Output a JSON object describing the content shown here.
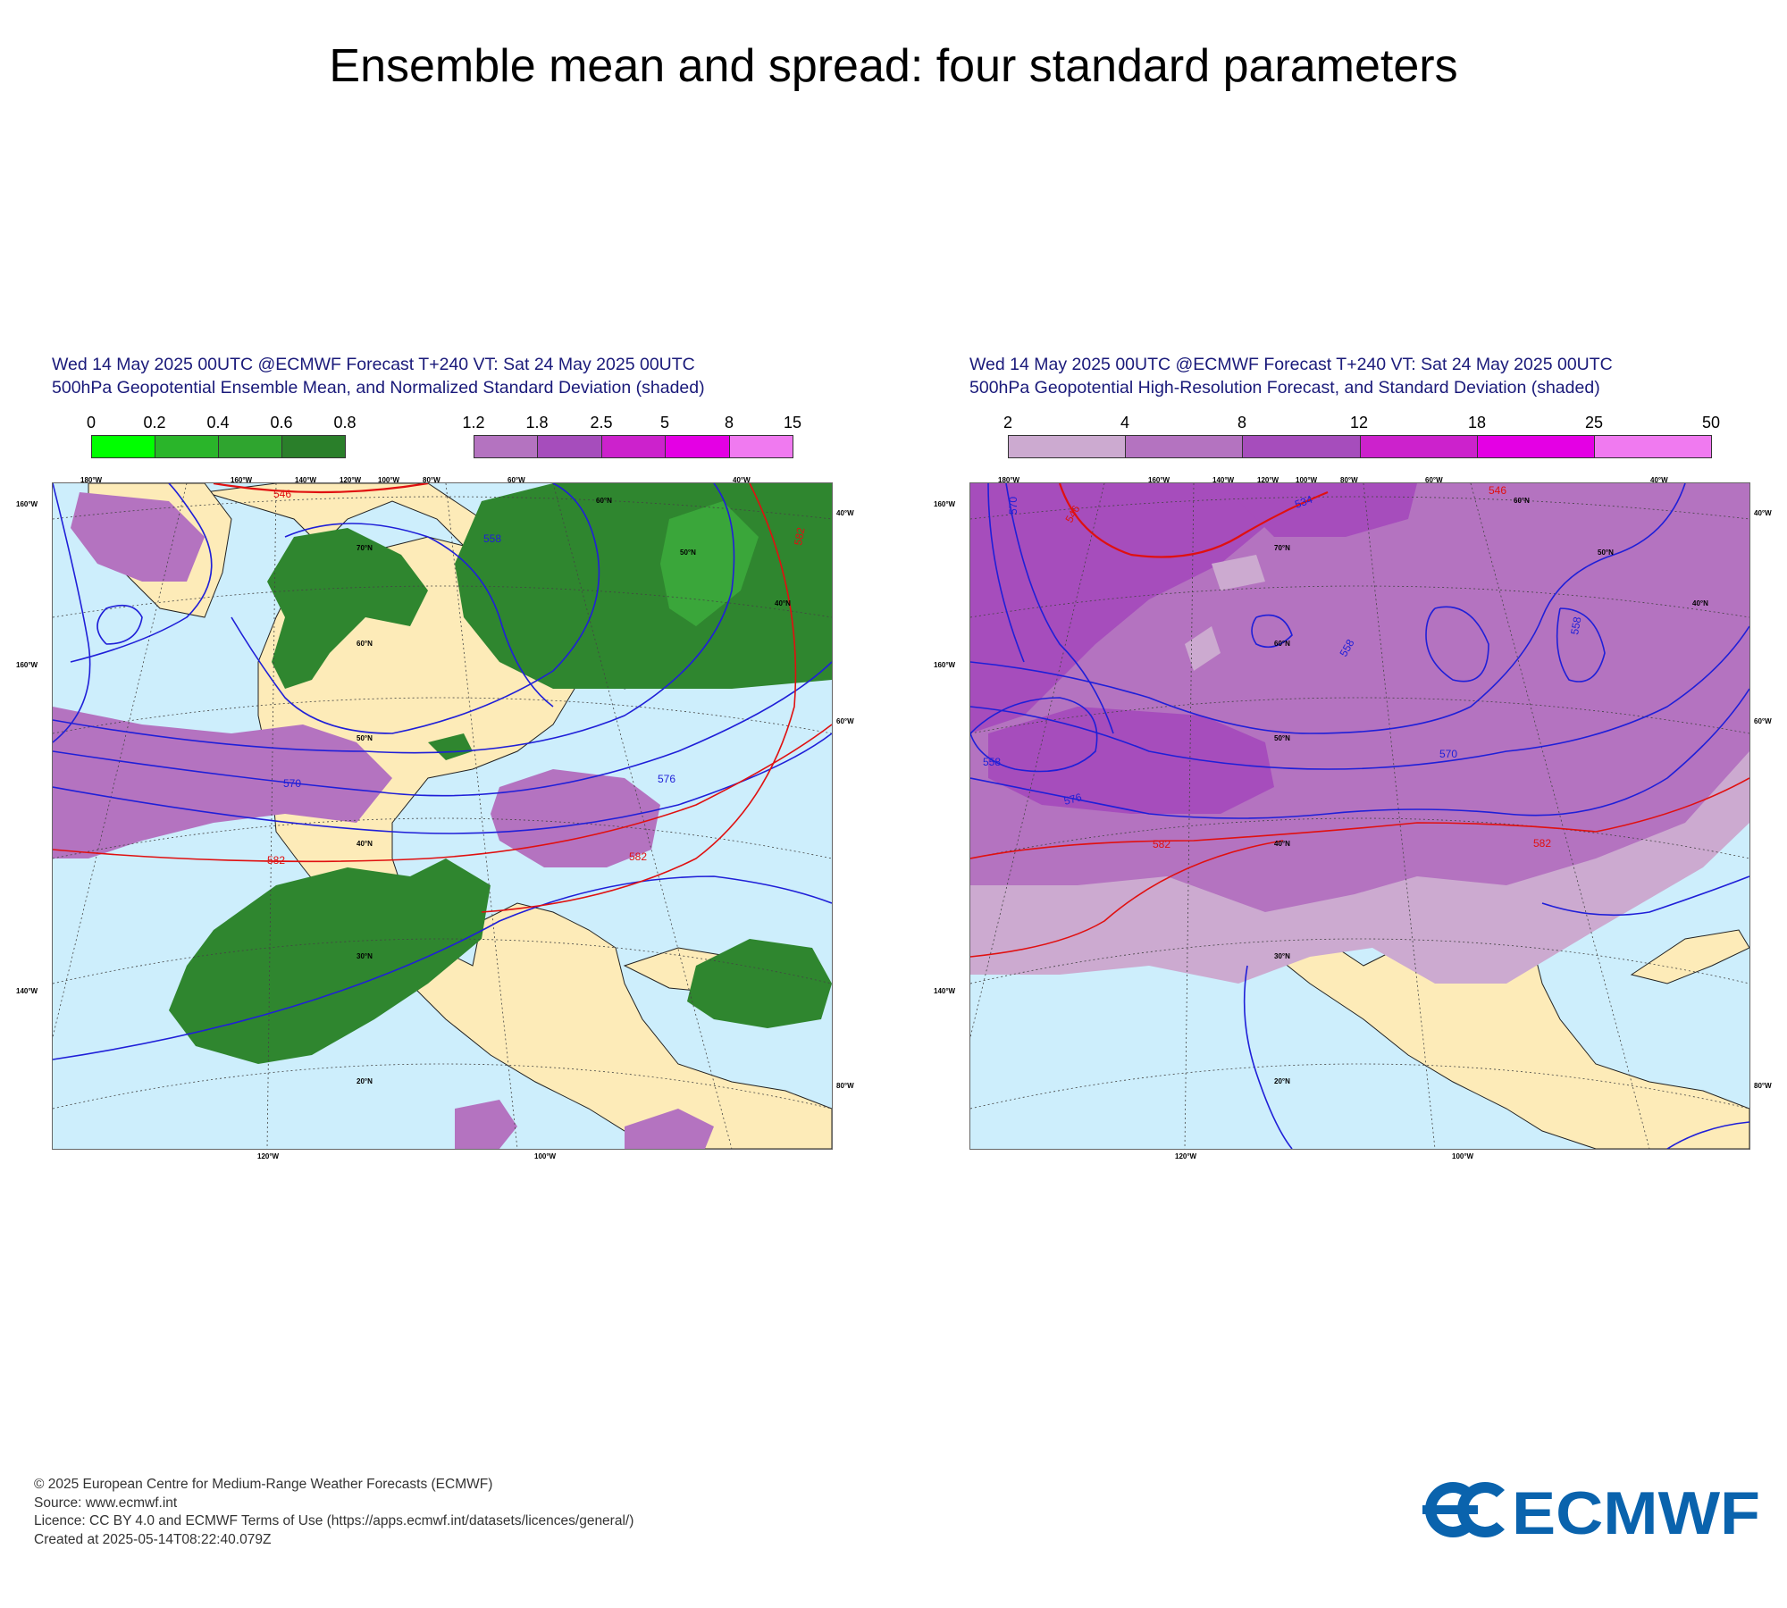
{
  "page": {
    "title": "Ensemble mean and spread: four standard parameters"
  },
  "panels": [
    {
      "title_line1": "Wed 14 May 2025 00UTC @ECMWF Forecast T+240 VT: Sat 24 May 2025 00UTC",
      "title_line2": "500hPa Geopotential Ensemble Mean, and Normalized Standard Deviation (shaded)",
      "legend_green": {
        "ticks": [
          "0",
          "0.2",
          "0.4",
          "0.6",
          "0.8"
        ],
        "colors": [
          "#00ff00",
          "#2ab52a",
          "#2fa52f",
          "#2a7f2a"
        ]
      },
      "legend_purple": {
        "ticks": [
          "1.2",
          "1.8",
          "2.5",
          "5",
          "8",
          "15"
        ],
        "colors": [
          "#b473c0",
          "#a64dbc",
          "#cc22cc",
          "#e400e4",
          "#f07af0"
        ]
      },
      "contour_labels": [
        "546",
        "558",
        "570",
        "576",
        "582",
        "582",
        "582"
      ],
      "lat_labels": [
        "70°N",
        "60°N",
        "50°N",
        "40°N",
        "30°N",
        "20°N",
        "60°N",
        "50°N",
        "40°N"
      ],
      "lon_top": [
        "180°W",
        "160°W",
        "140°W",
        "120°W",
        "100°W",
        "80°W",
        "60°W",
        "40°W"
      ],
      "lon_left": [
        "160°W",
        "160°W",
        "140°W"
      ],
      "lon_right": [
        "40°W",
        "60°W",
        "80°W"
      ],
      "lon_bottom": [
        "120°W",
        "100°W"
      ]
    },
    {
      "title_line1": "Wed 14 May 2025 00UTC @ECMWF Forecast T+240 VT: Sat 24 May 2025 00UTC",
      "title_line2": "500hPa Geopotential High-Resolution Forecast, and Standard Deviation (shaded)",
      "legend": {
        "ticks": [
          "2",
          "4",
          "8",
          "12",
          "18",
          "25",
          "50"
        ],
        "colors": [
          "#ccaad0",
          "#b473c0",
          "#a64dbc",
          "#cc22cc",
          "#e400e4",
          "#f07af0"
        ]
      },
      "contour_labels": [
        "546",
        "546",
        "558",
        "558",
        "570",
        "570",
        "576",
        "582",
        "582",
        "534",
        "558"
      ],
      "lat_labels": [
        "70°N",
        "60°N",
        "50°N",
        "40°N",
        "30°N",
        "20°N",
        "60°N",
        "50°N",
        "40°N"
      ],
      "lon_top": [
        "180°W",
        "160°W",
        "140°W",
        "120°W",
        "100°W",
        "80°W",
        "60°W",
        "40°W"
      ],
      "lon_left": [
        "160°W",
        "160°W",
        "140°W"
      ],
      "lon_right": [
        "40°W",
        "60°W",
        "80°W"
      ],
      "lon_bottom": [
        "120°W",
        "100°W"
      ]
    }
  ],
  "footer": {
    "copyright": "© 2025 European Centre for Medium-Range Weather Forecasts (ECMWF)",
    "source": "Source: www.ecmwf.int",
    "licence": "Licence: CC BY 4.0 and ECMWF Terms of Use (https://apps.ecmwf.int/datasets/licences/general/)",
    "created": "Created at 2025-05-14T08:22:40.079Z"
  },
  "logo": {
    "text": "ECMWF",
    "color": "#0a63ad"
  },
  "colors": {
    "ocean": "#cdeefc",
    "land": "#fdebb8",
    "contour_blue": "#1f1fd8",
    "contour_red": "#e01010"
  }
}
